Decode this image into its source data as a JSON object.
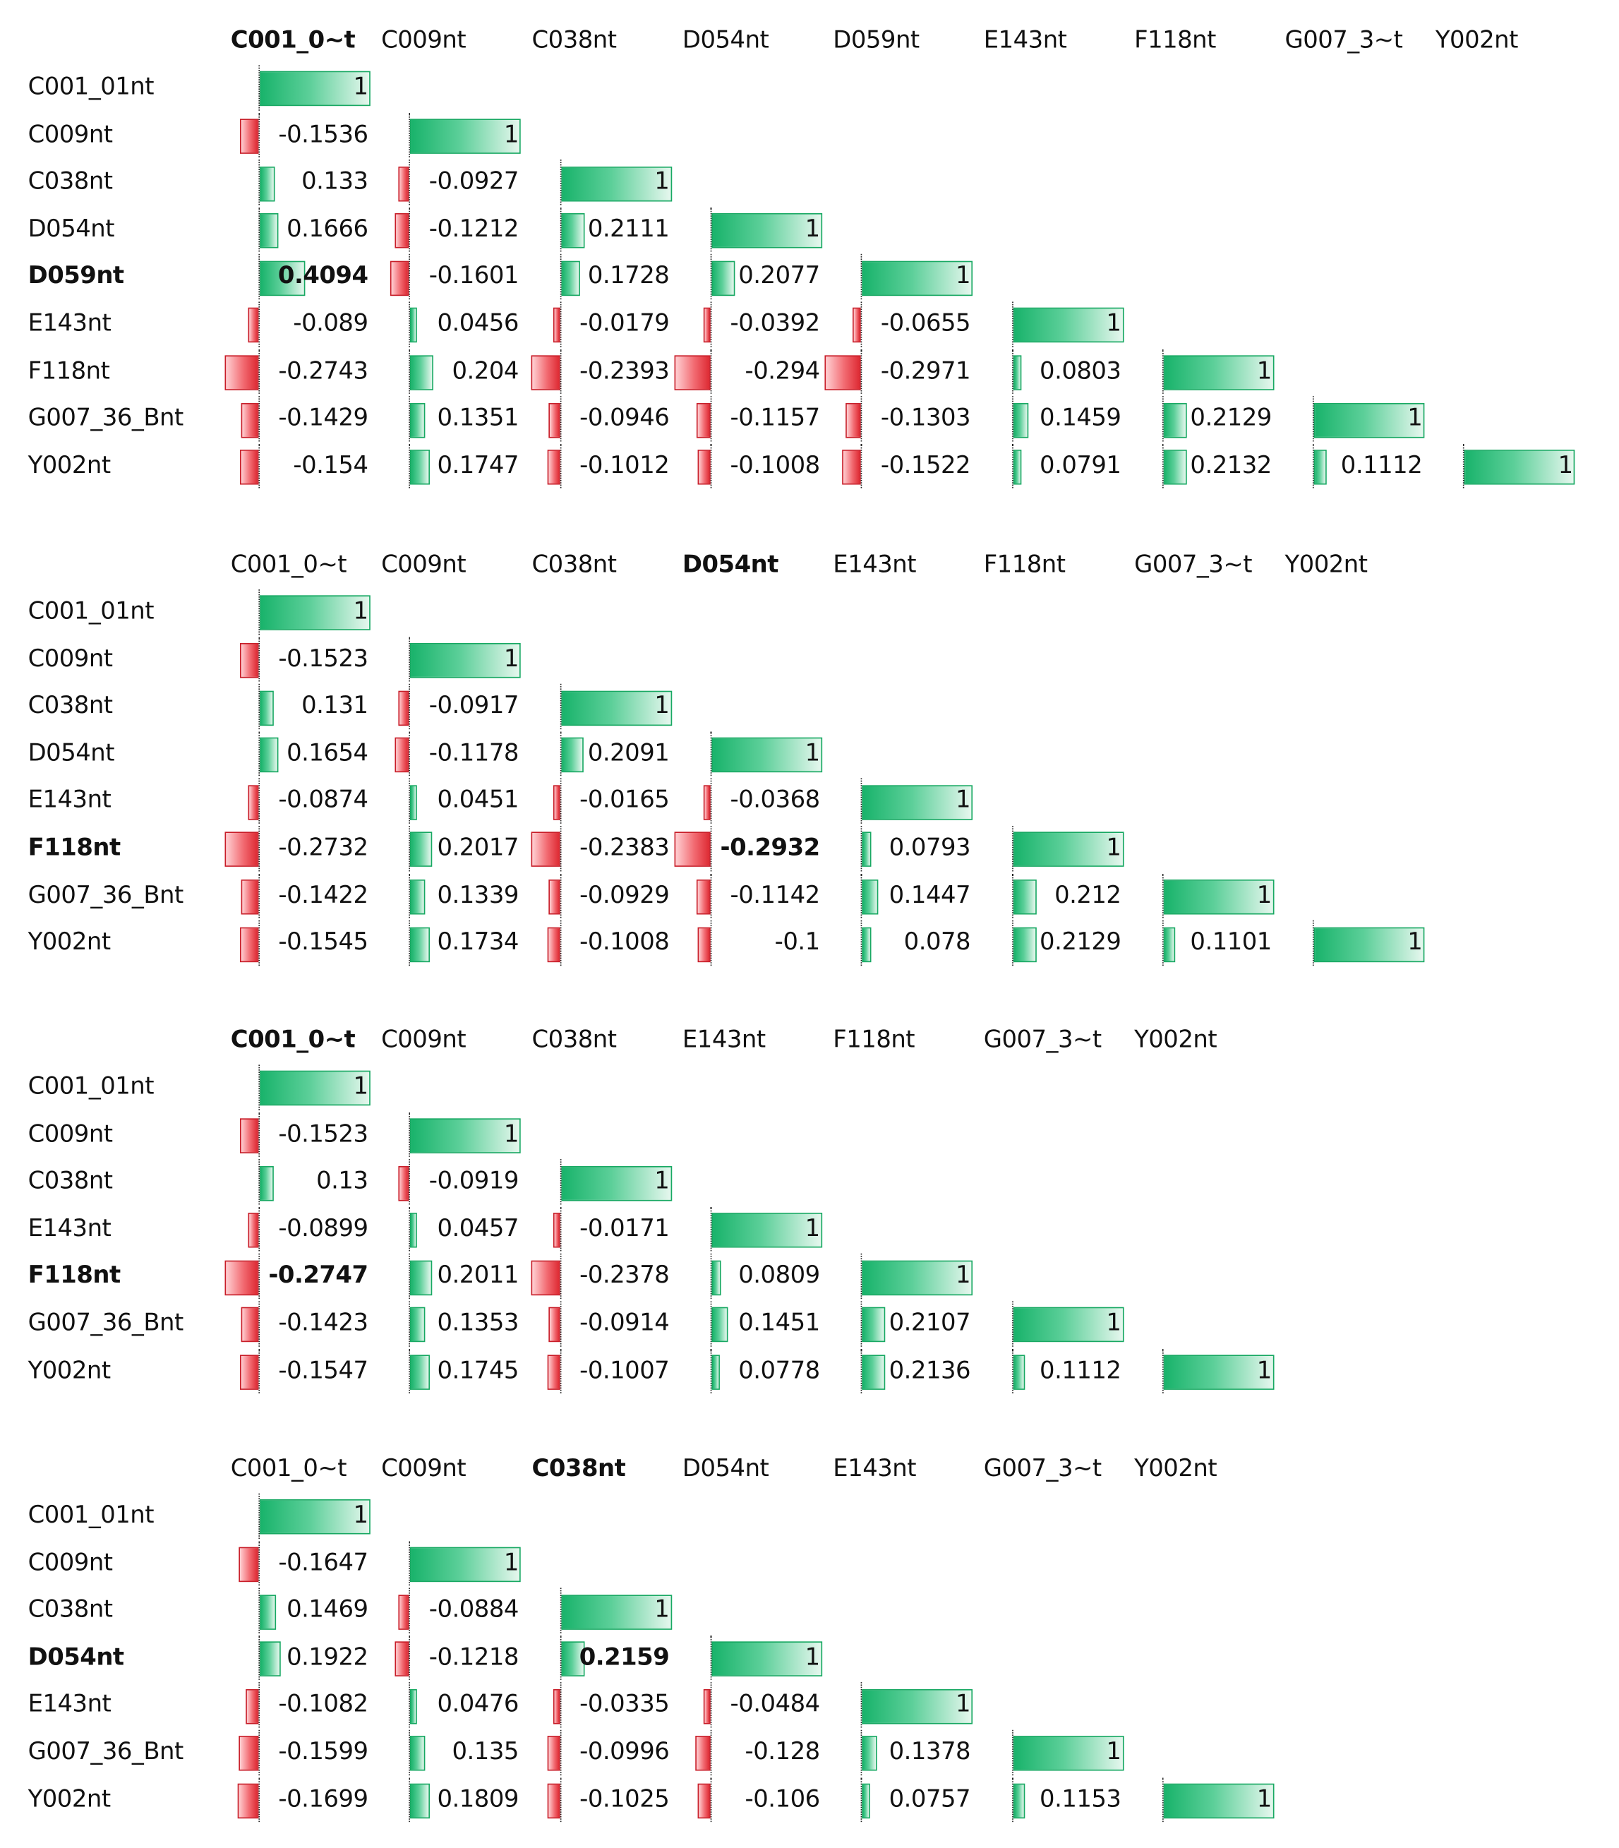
{
  "chart_data": [
    {
      "type": "table",
      "col_labels": [
        "C001_0~t",
        "C009nt",
        "C038nt",
        "D054nt",
        "D059nt",
        "E143nt",
        "F118nt",
        "G007_3~t",
        "Y002nt"
      ],
      "row_labels": [
        "C001_01nt",
        "C009nt",
        "C038nt",
        "D054nt",
        "D059nt",
        "E143nt",
        "F118nt",
        "G007_36_Bnt",
        "Y002nt"
      ],
      "bold_row": "D059nt",
      "bold_col": "C001_0~t",
      "bold_cell": [
        4,
        0
      ],
      "values": [
        [
          "1"
        ],
        [
          "-0.1536",
          "1"
        ],
        [
          "0.133",
          "-0.0927",
          "1"
        ],
        [
          "0.1666",
          "-0.1212",
          "0.2111",
          "1"
        ],
        [
          "0.4094",
          "-0.1601",
          "0.1728",
          "0.2077",
          "1"
        ],
        [
          "-0.089",
          "0.0456",
          "-0.0179",
          "-0.0392",
          "-0.0655",
          "1"
        ],
        [
          "-0.2743",
          "0.204",
          "-0.2393",
          "-0.294",
          "-0.2971",
          "0.0803",
          "1"
        ],
        [
          "-0.1429",
          "0.1351",
          "-0.0946",
          "-0.1157",
          "-0.1303",
          "0.1459",
          "0.2129",
          "1"
        ],
        [
          "-0.154",
          "0.1747",
          "-0.1012",
          "-0.1008",
          "-0.1522",
          "0.0791",
          "0.2132",
          "0.1112",
          "1"
        ]
      ]
    },
    {
      "type": "table",
      "col_labels": [
        "C001_0~t",
        "C009nt",
        "C038nt",
        "D054nt",
        "E143nt",
        "F118nt",
        "G007_3~t",
        "Y002nt"
      ],
      "row_labels": [
        "C001_01nt",
        "C009nt",
        "C038nt",
        "D054nt",
        "E143nt",
        "F118nt",
        "G007_36_Bnt",
        "Y002nt"
      ],
      "bold_row": "F118nt",
      "bold_col": "D054nt",
      "bold_cell": [
        5,
        3
      ],
      "values": [
        [
          "1"
        ],
        [
          "-0.1523",
          "1"
        ],
        [
          "0.131",
          "-0.0917",
          "1"
        ],
        [
          "0.1654",
          "-0.1178",
          "0.2091",
          "1"
        ],
        [
          "-0.0874",
          "0.0451",
          "-0.0165",
          "-0.0368",
          "1"
        ],
        [
          "-0.2732",
          "0.2017",
          "-0.2383",
          "-0.2932",
          "0.0793",
          "1"
        ],
        [
          "-0.1422",
          "0.1339",
          "-0.0929",
          "-0.1142",
          "0.1447",
          "0.212",
          "1"
        ],
        [
          "-0.1545",
          "0.1734",
          "-0.1008",
          "-0.1",
          "0.078",
          "0.2129",
          "0.1101",
          "1"
        ]
      ]
    },
    {
      "type": "table",
      "col_labels": [
        "C001_0~t",
        "C009nt",
        "C038nt",
        "E143nt",
        "F118nt",
        "G007_3~t",
        "Y002nt"
      ],
      "row_labels": [
        "C001_01nt",
        "C009nt",
        "C038nt",
        "E143nt",
        "F118nt",
        "G007_36_Bnt",
        "Y002nt"
      ],
      "bold_row": "F118nt",
      "bold_col": "C001_0~t",
      "bold_cell": [
        4,
        0
      ],
      "values": [
        [
          "1"
        ],
        [
          "-0.1523",
          "1"
        ],
        [
          "0.13",
          "-0.0919",
          "1"
        ],
        [
          "-0.0899",
          "0.0457",
          "-0.0171",
          "1"
        ],
        [
          "-0.2747",
          "0.2011",
          "-0.2378",
          "0.0809",
          "1"
        ],
        [
          "-0.1423",
          "0.1353",
          "-0.0914",
          "0.1451",
          "0.2107",
          "1"
        ],
        [
          "-0.1547",
          "0.1745",
          "-0.1007",
          "0.0778",
          "0.2136",
          "0.1112",
          "1"
        ]
      ]
    },
    {
      "type": "table",
      "col_labels": [
        "C001_0~t",
        "C009nt",
        "C038nt",
        "D054nt",
        "E143nt",
        "G007_3~t",
        "Y002nt"
      ],
      "row_labels": [
        "C001_01nt",
        "C009nt",
        "C038nt",
        "D054nt",
        "E143nt",
        "G007_36_Bnt",
        "Y002nt"
      ],
      "bold_row": "D054nt",
      "bold_col": "C038nt",
      "bold_cell": [
        3,
        2
      ],
      "values": [
        [
          "1"
        ],
        [
          "-0.1647",
          "1"
        ],
        [
          "0.1469",
          "-0.0884",
          "1"
        ],
        [
          "0.1922",
          "-0.1218",
          "0.2159",
          "1"
        ],
        [
          "-0.1082",
          "0.0476",
          "-0.0335",
          "-0.0484",
          "1"
        ],
        [
          "-0.1599",
          "0.135",
          "-0.0996",
          "-0.128",
          "0.1378",
          "1"
        ],
        [
          "-0.1699",
          "0.1809",
          "-0.1025",
          "-0.106",
          "0.0757",
          "0.1153",
          "1"
        ]
      ]
    }
  ]
}
